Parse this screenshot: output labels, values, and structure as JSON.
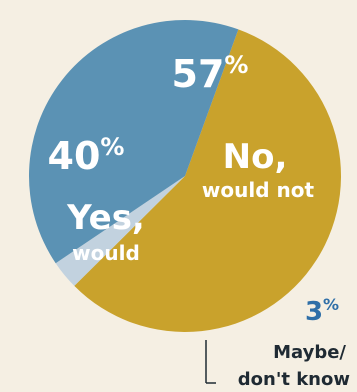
{
  "chart_data": {
    "type": "pie",
    "slices": [
      {
        "value": 57,
        "pct_label": "57",
        "label_lines": [
          "No,",
          "would not"
        ]
      },
      {
        "value": 3,
        "pct_label": "3",
        "label_lines": [
          "Maybe/",
          "don't know"
        ]
      },
      {
        "value": 40,
        "pct_label": "40",
        "label_lines": [
          "Yes,",
          "would"
        ]
      }
    ],
    "percent_symbol": "%",
    "colors": {
      "no": "#c9a22c",
      "maybe": "#c2d2df",
      "yes": "#5b92b4",
      "text_light": "#ffffff",
      "text_dark": "#1f2a33",
      "accent_blue": "#2f6fa8",
      "background": "#f5efe3"
    },
    "start_angle_deg": 20,
    "direction": "clockwise"
  }
}
